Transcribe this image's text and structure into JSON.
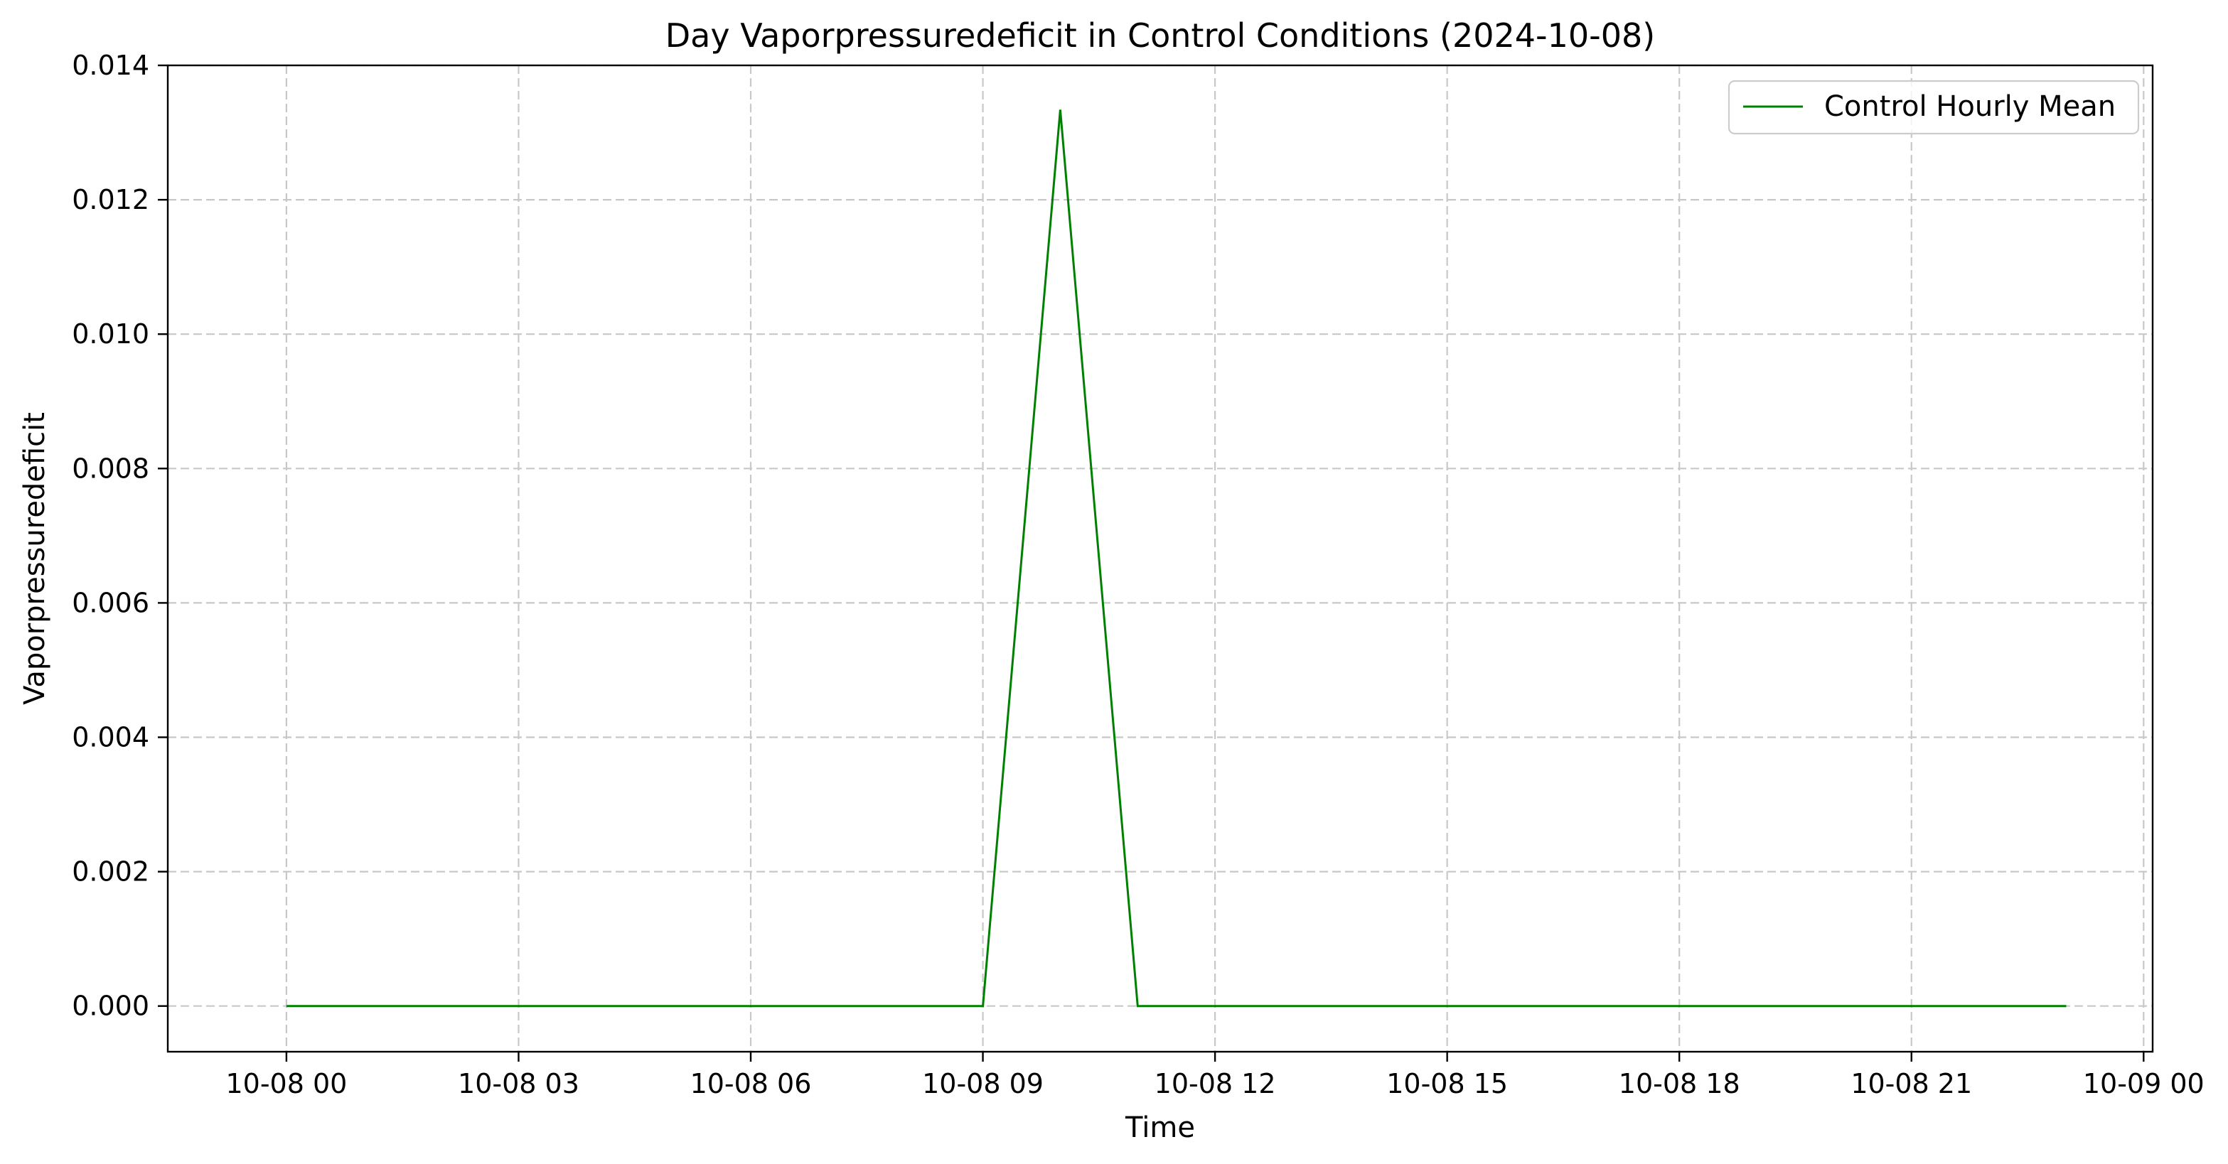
{
  "chart_data": {
    "type": "line",
    "title": "Day Vaporpressuredeficit in Control Conditions (2024-10-08)",
    "xlabel": "Time",
    "ylabel": "Vaporpressuredeficit",
    "xlim": [
      "2024-10-07 22:28",
      "2024-10-09 00:07"
    ],
    "ylim": [
      -0.00068,
      0.014
    ],
    "x_ticks": [
      {
        "value": "2024-10-08 00:00",
        "label": "10-08 00"
      },
      {
        "value": "2024-10-08 03:00",
        "label": "10-08 03"
      },
      {
        "value": "2024-10-08 06:00",
        "label": "10-08 06"
      },
      {
        "value": "2024-10-08 09:00",
        "label": "10-08 09"
      },
      {
        "value": "2024-10-08 12:00",
        "label": "10-08 12"
      },
      {
        "value": "2024-10-08 15:00",
        "label": "10-08 15"
      },
      {
        "value": "2024-10-08 18:00",
        "label": "10-08 18"
      },
      {
        "value": "2024-10-08 21:00",
        "label": "10-08 21"
      },
      {
        "value": "2024-10-09 00:00",
        "label": "10-09 00"
      }
    ],
    "y_ticks": [
      {
        "value": 0.0,
        "label": "0.000"
      },
      {
        "value": 0.002,
        "label": "0.002"
      },
      {
        "value": 0.004,
        "label": "0.004"
      },
      {
        "value": 0.006,
        "label": "0.006"
      },
      {
        "value": 0.008,
        "label": "0.008"
      },
      {
        "value": 0.01,
        "label": "0.010"
      },
      {
        "value": 0.012,
        "label": "0.012"
      },
      {
        "value": 0.014,
        "label": "0.014"
      }
    ],
    "grid": true,
    "legend_position": "top-right",
    "series": [
      {
        "name": "Control Hourly Mean",
        "color": "#008000",
        "points": [
          {
            "x": "2024-10-08 00:00",
            "y": 0.0
          },
          {
            "x": "2024-10-08 01:00",
            "y": 0.0
          },
          {
            "x": "2024-10-08 02:00",
            "y": 0.0
          },
          {
            "x": "2024-10-08 03:00",
            "y": 0.0
          },
          {
            "x": "2024-10-08 04:00",
            "y": 0.0
          },
          {
            "x": "2024-10-08 05:00",
            "y": 0.0
          },
          {
            "x": "2024-10-08 06:00",
            "y": 0.0
          },
          {
            "x": "2024-10-08 07:00",
            "y": 0.0
          },
          {
            "x": "2024-10-08 08:00",
            "y": 0.0
          },
          {
            "x": "2024-10-08 09:00",
            "y": 0.0
          },
          {
            "x": "2024-10-08 10:00",
            "y": 0.01334
          },
          {
            "x": "2024-10-08 11:00",
            "y": 0.0
          },
          {
            "x": "2024-10-08 12:00",
            "y": 0.0
          },
          {
            "x": "2024-10-08 13:00",
            "y": 0.0
          },
          {
            "x": "2024-10-08 14:00",
            "y": 0.0
          },
          {
            "x": "2024-10-08 15:00",
            "y": 0.0
          },
          {
            "x": "2024-10-08 16:00",
            "y": 0.0
          },
          {
            "x": "2024-10-08 17:00",
            "y": 0.0
          },
          {
            "x": "2024-10-08 18:00",
            "y": 0.0
          },
          {
            "x": "2024-10-08 19:00",
            "y": 0.0
          },
          {
            "x": "2024-10-08 20:00",
            "y": 0.0
          },
          {
            "x": "2024-10-08 21:00",
            "y": 0.0
          },
          {
            "x": "2024-10-08 22:00",
            "y": 0.0
          },
          {
            "x": "2024-10-08 23:00",
            "y": 0.0
          }
        ]
      }
    ]
  }
}
